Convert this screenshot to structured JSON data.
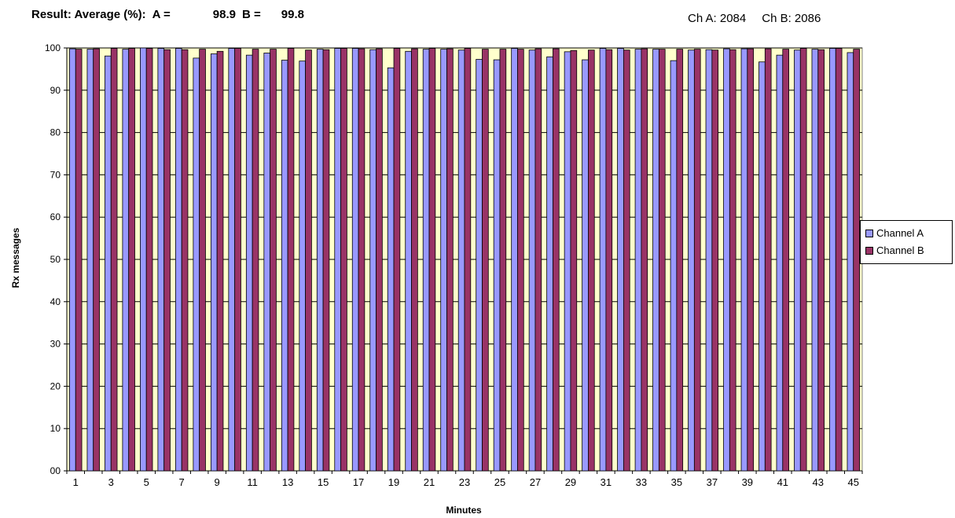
{
  "header": {
    "result_label": "Result: Average (%):",
    "a_label": "A =",
    "a_value": "98.9",
    "b_label": "B =",
    "b_value": "99.8",
    "ch_a": "Ch A: 2084",
    "ch_b": "Ch B: 2086"
  },
  "chart_data": {
    "type": "bar",
    "xlabel": "Minutes",
    "ylabel": "Rx messages",
    "ylim": [
      0,
      100
    ],
    "yticks": [
      "00",
      "10",
      "20",
      "30",
      "40",
      "50",
      "60",
      "70",
      "80",
      "90",
      "100"
    ],
    "grid": true,
    "legend_placement": "right",
    "plot_background": "#ffffcc",
    "categories": [
      1,
      2,
      3,
      4,
      5,
      6,
      7,
      8,
      9,
      10,
      11,
      12,
      13,
      14,
      15,
      16,
      17,
      18,
      19,
      20,
      21,
      22,
      23,
      24,
      25,
      26,
      27,
      28,
      29,
      30,
      31,
      32,
      33,
      34,
      35,
      36,
      37,
      38,
      39,
      40,
      41,
      42,
      43,
      44,
      45
    ],
    "x_tick_labels": [
      "1",
      "3",
      "5",
      "7",
      "9",
      "11",
      "13",
      "15",
      "17",
      "19",
      "21",
      "23",
      "25",
      "27",
      "29",
      "31",
      "33",
      "35",
      "37",
      "39",
      "41",
      "43",
      "45"
    ],
    "series": [
      {
        "name": "Channel A",
        "color": "#9999ff",
        "values": [
          99.8,
          99.7,
          98.1,
          99.7,
          100,
          99.9,
          99.9,
          97.6,
          98.6,
          99.9,
          98.3,
          98.8,
          97.1,
          96.9,
          99.7,
          99.9,
          99.9,
          99.6,
          95.3,
          99.2,
          99.7,
          99.7,
          99.5,
          97.3,
          97.2,
          99.9,
          99.5,
          97.9,
          99.1,
          97.2,
          99.9,
          99.9,
          99.7,
          99.7,
          97.0,
          99.5,
          99.6,
          99.8,
          99.8,
          96.7,
          98.3,
          99.5,
          99.7,
          99.9,
          98.9
        ]
      },
      {
        "name": "Channel B",
        "color": "#993366",
        "values": [
          99.7,
          99.8,
          99.9,
          99.9,
          99.9,
          99.6,
          99.6,
          99.7,
          99.2,
          99.9,
          99.7,
          99.7,
          99.9,
          99.5,
          99.6,
          99.9,
          99.8,
          99.8,
          99.9,
          99.8,
          99.9,
          99.8,
          99.9,
          99.7,
          99.7,
          99.7,
          99.8,
          99.8,
          99.4,
          99.5,
          99.6,
          99.5,
          99.8,
          99.7,
          99.7,
          99.7,
          99.5,
          99.6,
          99.8,
          99.8,
          99.7,
          99.9,
          99.6,
          99.9,
          99.7
        ]
      }
    ]
  }
}
